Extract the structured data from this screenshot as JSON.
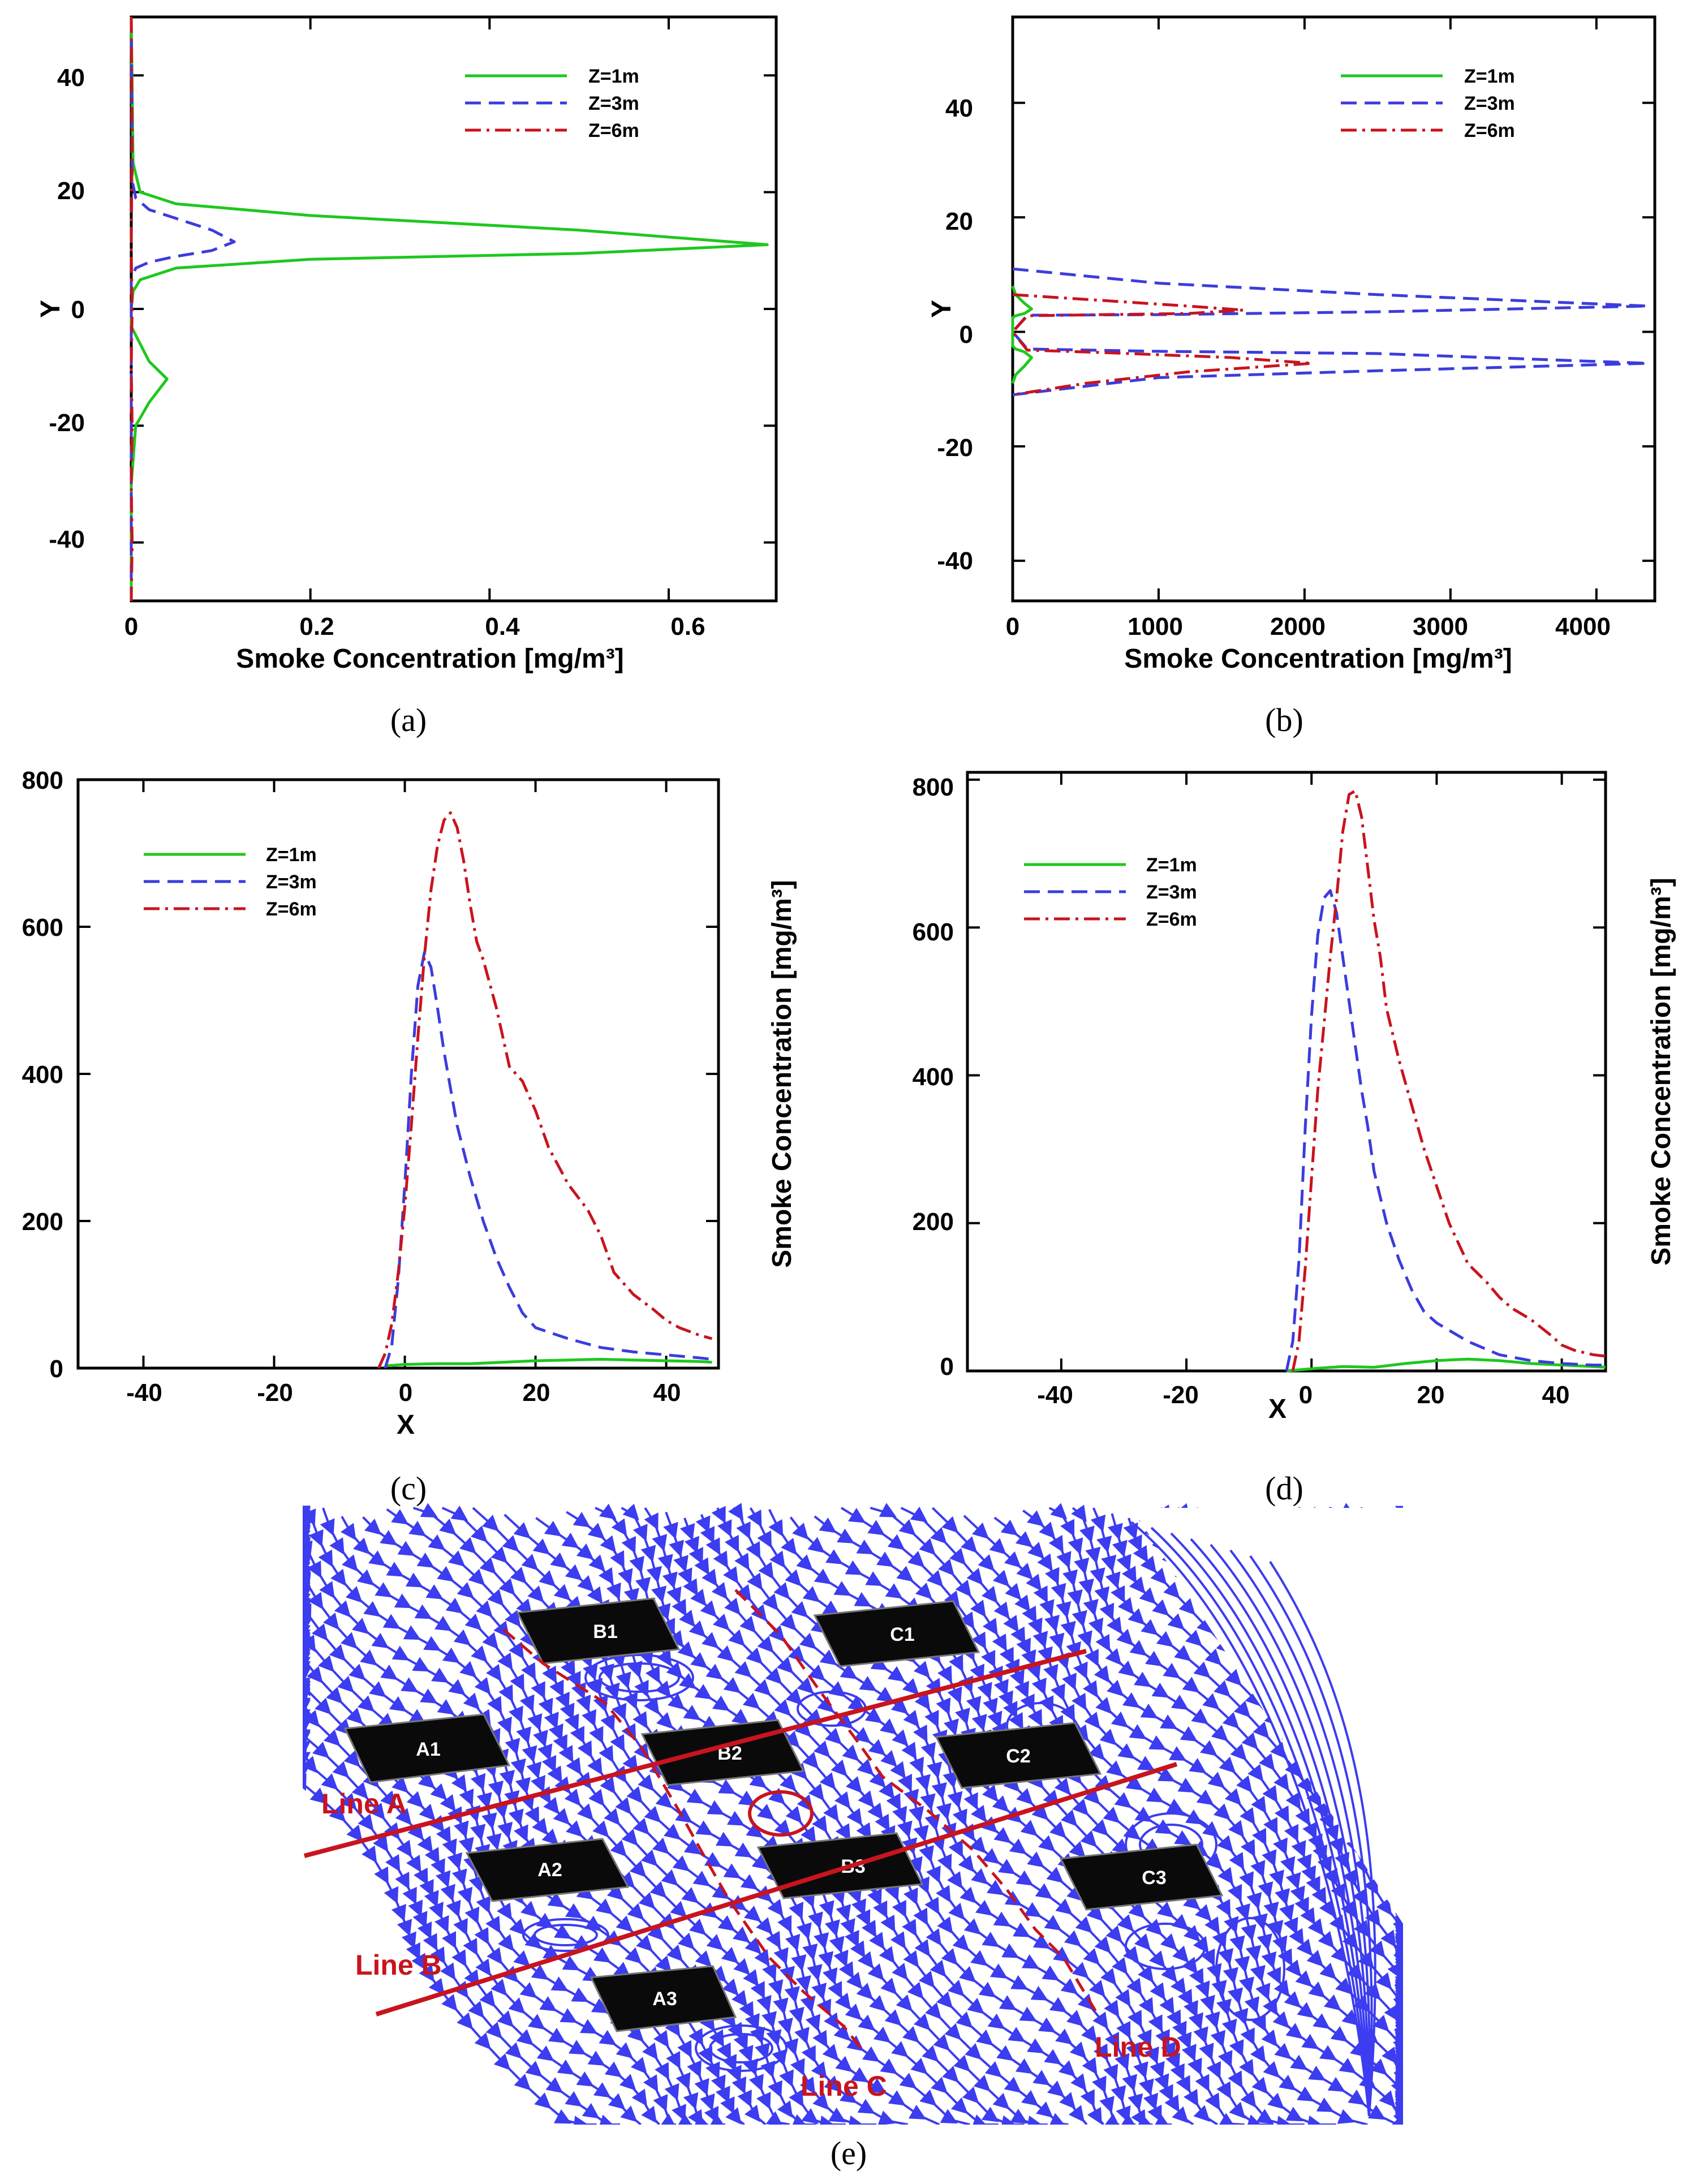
{
  "colors": {
    "z1": "#1ec81e",
    "z3": "#3c3cdc",
    "z6": "#c8141e",
    "stream": "#3c3cf0",
    "building": "#0a0a0a",
    "lines": "#c8141e"
  },
  "legend": [
    "Z=1m",
    "Z=3m",
    "Z=6m"
  ],
  "captions": {
    "a": "(a)",
    "b": "(b)",
    "c": "(c)",
    "d": "(d)",
    "e": "(e)"
  },
  "axes": {
    "a": {
      "xlabel": "Smoke Concentration [mg/m³]",
      "ylabel": "Y",
      "xticks": [
        "0",
        "0.2",
        "0.4",
        "0.6"
      ],
      "yticks": [
        "40",
        "20",
        "0",
        "-20",
        "-40"
      ]
    },
    "b": {
      "xlabel": "Smoke Concentration [mg/m³]",
      "ylabel": "Y",
      "xticks": [
        "0",
        "1000",
        "2000",
        "3000",
        "4000"
      ],
      "yticks": [
        "40",
        "20",
        "0",
        "-20",
        "-40"
      ]
    },
    "c": {
      "xlabel": "X",
      "ylabel": "Smoke Concentration [mg/m³]",
      "xticks": [
        "-40",
        "-20",
        "0",
        "20",
        "40"
      ],
      "yticks": [
        "800",
        "600",
        "400",
        "200",
        "0"
      ]
    },
    "d": {
      "xlabel": "X",
      "ylabel": "Smoke Concentration [mg/m³]",
      "xticks": [
        "-40",
        "-20",
        "0",
        "20",
        "40"
      ],
      "yticks": [
        "800",
        "600",
        "400",
        "200",
        "0"
      ]
    }
  },
  "chart_data": [
    {
      "id": "a",
      "type": "line",
      "orientation": "vertical-profile",
      "xlabel": "Smoke Concentration [mg/m³]",
      "ylabel": "Y",
      "xlim": [
        0,
        0.72
      ],
      "ylim": [
        -50,
        50
      ],
      "series": [
        {
          "name": "Z=1m",
          "x": [
            0,
            0.002,
            0.01,
            0.05,
            0.2,
            0.5,
            0.71,
            0.5,
            0.2,
            0.05,
            0.01,
            0.002,
            0,
            0,
            0.01,
            0.02,
            0.04,
            0.02,
            0.005,
            0,
            0
          ],
          "y": [
            50,
            25,
            20,
            18,
            16,
            13.5,
            11,
            9.5,
            8.5,
            7,
            5,
            3,
            0,
            -3,
            -6,
            -9,
            -12,
            -16,
            -20,
            -30,
            -50
          ]
        },
        {
          "name": "Z=3m",
          "x": [
            0,
            0.001,
            0.005,
            0.02,
            0.05,
            0.09,
            0.115,
            0.09,
            0.05,
            0.02,
            0.005,
            0,
            0
          ],
          "y": [
            50,
            22,
            19,
            17,
            15.5,
            13.5,
            11.5,
            10,
            9,
            8,
            7,
            5,
            -50
          ]
        },
        {
          "name": "Z=6m",
          "x": [
            0,
            0.001,
            0,
            0.001,
            0,
            0.001,
            0,
            0.001,
            0
          ],
          "y": [
            50,
            30,
            10,
            0,
            -10,
            -20,
            -30,
            -40,
            -50
          ]
        }
      ]
    },
    {
      "id": "b",
      "type": "line",
      "orientation": "vertical-profile",
      "xlabel": "Smoke Concentration [mg/m³]",
      "ylabel": "Y",
      "xlim": [
        0,
        4400
      ],
      "ylim": [
        -47,
        55
      ],
      "series": [
        {
          "name": "Z=1m",
          "x": [
            0,
            20,
            80,
            130,
            80,
            20,
            0,
            0,
            20,
            80,
            130,
            80,
            20,
            0
          ],
          "y": [
            8,
            6.5,
            5,
            4,
            3.2,
            2.8,
            2.5,
            -2.5,
            -3,
            -3.5,
            -4.5,
            -6,
            -7.5,
            -9
          ]
        },
        {
          "name": "Z=3m",
          "x": [
            0,
            1000,
            2500,
            4350,
            2500,
            1000,
            100,
            0,
            100,
            1000,
            2500,
            4350,
            2500,
            1000,
            0
          ],
          "y": [
            11,
            8.5,
            6.5,
            4.5,
            3.5,
            3,
            2.9,
            0,
            -3,
            -3.4,
            -3.8,
            -5.5,
            -6.8,
            -8,
            -11
          ]
        },
        {
          "name": "Z=6m",
          "x": [
            0,
            600,
            1200,
            1580,
            1200,
            600,
            100,
            0,
            100,
            600,
            1500,
            2050,
            1200,
            500,
            0
          ],
          "y": [
            6.5,
            5.5,
            4.5,
            3.8,
            3.2,
            3,
            2.8,
            0,
            -3.2,
            -3.6,
            -4.5,
            -5.5,
            -7,
            -9,
            -11
          ]
        }
      ]
    },
    {
      "id": "c",
      "type": "line",
      "xlabel": "X",
      "ylabel": "Smoke Concentration [mg/m³]",
      "xlim": [
        -50,
        48
      ],
      "ylim": [
        0,
        800
      ],
      "series": [
        {
          "name": "Z=1m",
          "x": [
            -3,
            0,
            5,
            10,
            15,
            20,
            25,
            30,
            35,
            40,
            45,
            47
          ],
          "y": [
            3,
            5,
            6,
            6,
            8,
            10,
            11,
            12,
            11,
            10,
            9,
            8
          ]
        },
        {
          "name": "Z=3m",
          "x": [
            -3,
            -2,
            -1,
            0,
            1,
            2,
            3,
            4,
            5,
            6,
            7,
            8,
            10,
            12,
            14,
            16,
            18,
            20,
            25,
            30,
            35,
            40,
            45,
            47
          ],
          "y": [
            0,
            30,
            120,
            250,
            400,
            520,
            565,
            545,
            490,
            430,
            380,
            330,
            260,
            200,
            150,
            110,
            75,
            55,
            40,
            28,
            22,
            18,
            14,
            12
          ]
        },
        {
          "name": "Z=6m",
          "x": [
            -4,
            -3,
            -2,
            -1,
            0,
            1,
            2,
            3,
            4,
            5,
            6,
            7,
            8,
            9,
            10,
            11,
            12,
            14,
            16,
            18,
            20,
            22,
            25,
            28,
            30,
            32,
            35,
            38,
            40,
            42,
            45,
            47
          ],
          "y": [
            0,
            20,
            60,
            130,
            220,
            330,
            450,
            560,
            650,
            710,
            745,
            755,
            735,
            690,
            630,
            580,
            555,
            490,
            410,
            390,
            350,
            300,
            250,
            215,
            180,
            130,
            100,
            80,
            65,
            55,
            45,
            40
          ]
        }
      ]
    },
    {
      "id": "d",
      "type": "line",
      "xlabel": "X",
      "ylabel": "Smoke Concentration [mg/m³]",
      "xlim": [
        -55,
        47
      ],
      "ylim": [
        0,
        810
      ],
      "series": [
        {
          "name": "Z=1m",
          "x": [
            -4,
            0,
            5,
            10,
            15,
            20,
            25,
            30,
            35,
            40,
            45,
            47
          ],
          "y": [
            0,
            3,
            6,
            5,
            10,
            14,
            16,
            14,
            10,
            8,
            6,
            5
          ]
        },
        {
          "name": "Z=3m",
          "x": [
            -4,
            -3,
            -2,
            -1,
            0,
            1,
            2,
            3,
            4,
            5,
            6,
            7,
            8,
            9,
            10,
            12,
            14,
            16,
            18,
            20,
            25,
            30,
            35,
            40,
            45,
            47
          ],
          "y": [
            0,
            40,
            150,
            330,
            480,
            590,
            640,
            650,
            620,
            560,
            500,
            440,
            380,
            330,
            270,
            200,
            150,
            110,
            80,
            65,
            40,
            22,
            14,
            10,
            8,
            8
          ]
        },
        {
          "name": "Z=6m",
          "x": [
            -3,
            -2,
            -1,
            0,
            1,
            2,
            3,
            4,
            5,
            6,
            7,
            8,
            9,
            10,
            11,
            12,
            14,
            16,
            18,
            20,
            22,
            25,
            28,
            30,
            32,
            35,
            38,
            40,
            42,
            45,
            47
          ],
          "y": [
            0,
            40,
            140,
            260,
            380,
            470,
            560,
            640,
            730,
            780,
            785,
            750,
            680,
            610,
            560,
            490,
            420,
            360,
            300,
            250,
            200,
            145,
            120,
            100,
            85,
            70,
            50,
            35,
            28,
            22,
            20
          ]
        }
      ]
    }
  ],
  "diagram_e": {
    "buildings": [
      "A1",
      "A2",
      "A3",
      "B1",
      "B2",
      "B3",
      "C1",
      "C2",
      "C3"
    ],
    "lines": [
      "Line A",
      "Line B",
      "Line C",
      "Line D"
    ]
  }
}
